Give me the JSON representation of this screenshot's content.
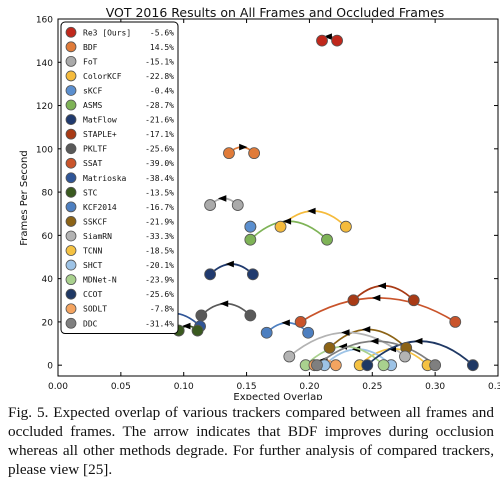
{
  "chart_data": {
    "type": "scatter",
    "title": "VOT 2016 Results on All Frames and Occluded Frames",
    "xlabel": "Expected Overlap",
    "ylabel": "Frames Per Second",
    "xlim": [
      0.0,
      0.35
    ],
    "ylim": [
      -5,
      160
    ],
    "xticks": [
      "0.00",
      "0.05",
      "0.10",
      "0.15",
      "0.20",
      "0.25",
      "0.30",
      "0.35"
    ],
    "yticks": [
      "0",
      "20",
      "40",
      "60",
      "80",
      "100",
      "120",
      "140",
      "160"
    ],
    "grid": false,
    "legend_position": "top-left",
    "series": [
      {
        "name": "Re3 [Ours]",
        "change": "-5.6%",
        "color": "#c0281c",
        "fps": 150,
        "all": 0.222,
        "occluded": 0.21
      },
      {
        "name": "BDF",
        "change": "14.5%",
        "color": "#e07b39",
        "fps": 98,
        "all": 0.136,
        "occluded": 0.156
      },
      {
        "name": "FoT",
        "change": "-15.1%",
        "color": "#aaaaaa",
        "fps": 74,
        "all": 0.143,
        "occluded": 0.121
      },
      {
        "name": "ColorKCF",
        "change": "-22.8%",
        "color": "#f5bb3c",
        "fps": 64,
        "all": 0.229,
        "occluded": 0.177
      },
      {
        "name": "sKCF",
        "change": "-0.4%",
        "color": "#5b8fcf",
        "fps": 64,
        "all": 0.153,
        "occluded": 0.153
      },
      {
        "name": "ASMS",
        "change": "-28.7%",
        "color": "#7eb356",
        "fps": 58,
        "all": 0.214,
        "occluded": 0.153
      },
      {
        "name": "MatFlow",
        "change": "-21.6%",
        "color": "#203a6e",
        "fps": 42,
        "all": 0.155,
        "occluded": 0.121
      },
      {
        "name": "STAPLE+",
        "change": "-17.1%",
        "color": "#a83a15",
        "fps": 30,
        "all": 0.283,
        "occluded": 0.235
      },
      {
        "name": "PKLTF",
        "change": "-25.6%",
        "color": "#595959",
        "fps": 23,
        "all": 0.153,
        "occluded": 0.114
      },
      {
        "name": "SSAT",
        "change": "-39.0%",
        "color": "#c9542b",
        "fps": 20,
        "all": 0.316,
        "occluded": 0.193
      },
      {
        "name": "Matrioska",
        "change": "-38.4%",
        "color": "#2f5597",
        "fps": 18,
        "all": 0.113,
        "occluded": 0.07
      },
      {
        "name": "STC",
        "change": "-13.5%",
        "color": "#3a5a1f",
        "fps": 16,
        "all": 0.111,
        "occluded": 0.096
      },
      {
        "name": "KCF2014",
        "change": "-16.7%",
        "color": "#4d7fc0",
        "fps": 15,
        "all": 0.199,
        "occluded": 0.166
      },
      {
        "name": "SSKCF",
        "change": "-21.9%",
        "color": "#8c6316",
        "fps": 8,
        "all": 0.277,
        "occluded": 0.216
      },
      {
        "name": "SiamRN",
        "change": "-33.3%",
        "color": "#b3b3b3",
        "fps": 4,
        "all": 0.276,
        "occluded": 0.184
      },
      {
        "name": "TCNN",
        "change": "-18.5%",
        "color": "#f5c242",
        "fps": 0,
        "all": 0.294,
        "occluded": 0.24
      },
      {
        "name": "SHCT",
        "change": "-20.1%",
        "color": "#9dc3e6",
        "fps": 0,
        "all": 0.265,
        "occluded": 0.212
      },
      {
        "name": "MDNet-N",
        "change": "-23.9%",
        "color": "#a9d18e",
        "fps": 0,
        "all": 0.259,
        "occluded": 0.197
      },
      {
        "name": "CCOT",
        "change": "-25.6%",
        "color": "#1f3864",
        "fps": 0,
        "all": 0.33,
        "occluded": 0.246
      },
      {
        "name": "SODLT",
        "change": "-7.8%",
        "color": "#f4a460",
        "fps": 0,
        "all": 0.221,
        "occluded": 0.204
      },
      {
        "name": "DDC",
        "change": "-31.4%",
        "color": "#7f7f7f",
        "fps": 0,
        "all": 0.3,
        "occluded": 0.206
      }
    ]
  },
  "caption": "Fig. 5.   Expected overlap of various trackers compared between all frames and occluded frames. The arrow indicates that BDF improves during occlusion whereas all other methods degrade. For further analysis of compared trackers, please view [25]."
}
